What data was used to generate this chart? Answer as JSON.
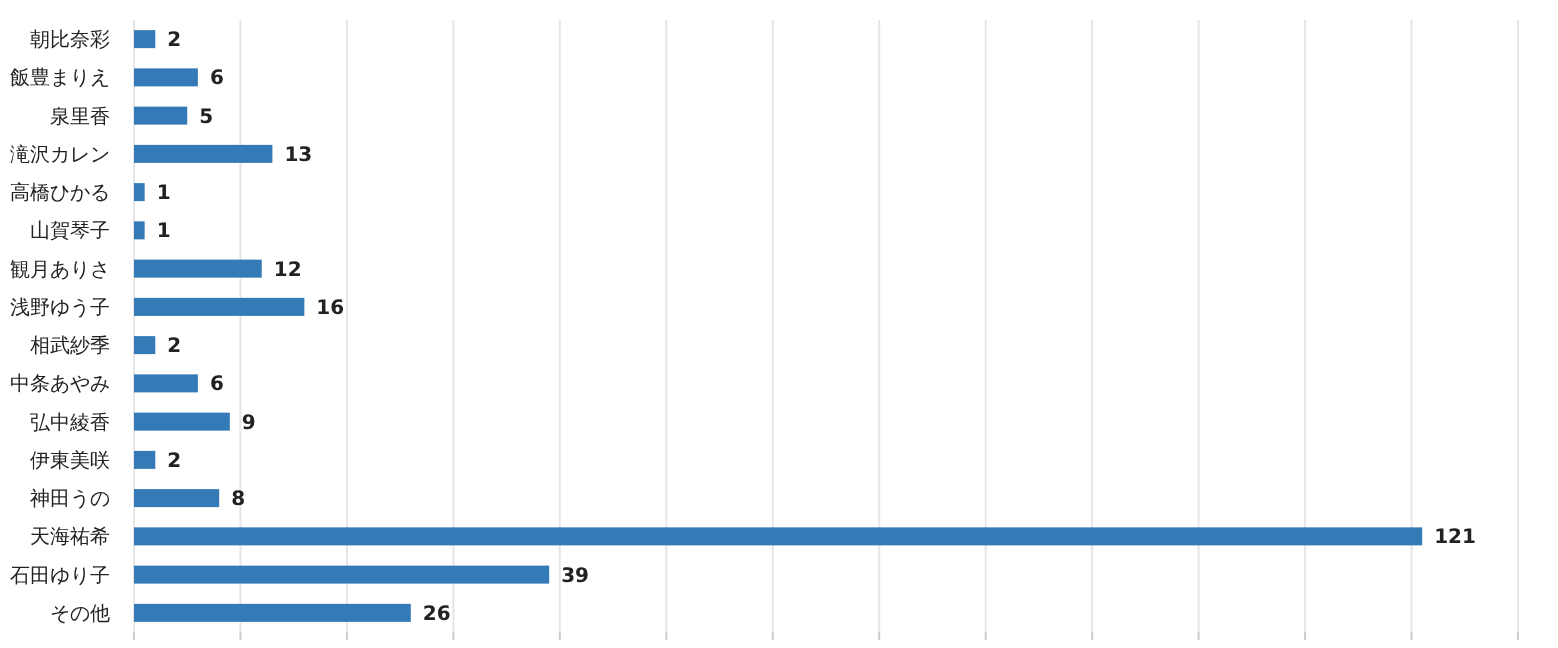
{
  "chart_data": {
    "type": "bar",
    "orientation": "horizontal",
    "categories": [
      "朝比奈彩",
      "飯豊まりえ",
      "泉里香",
      "滝沢カレン",
      "高橋ひかる",
      "山賀琴子",
      "観月ありさ",
      "浅野ゆう子",
      "相武紗季",
      "中条あやみ",
      "弘中綾香",
      "伊東美咲",
      "神田うの",
      "天海祐希",
      "石田ゆり子",
      "その他"
    ],
    "values": [
      2,
      6,
      5,
      13,
      1,
      1,
      12,
      16,
      2,
      6,
      9,
      2,
      8,
      121,
      39,
      26
    ],
    "color": "#337ab7",
    "xlim": [
      0,
      130
    ],
    "xticks": [
      {
        "value": 0,
        "label": null
      },
      {
        "value": 10,
        "label": null
      },
      {
        "value": 20,
        "label": null
      },
      {
        "value": 30,
        "label": null
      },
      {
        "value": 40,
        "label": null
      },
      {
        "value": 50,
        "label": null
      },
      {
        "value": 60,
        "label": null
      },
      {
        "value": 70,
        "label": null
      },
      {
        "value": 80,
        "label": null
      },
      {
        "value": 90,
        "label": null
      },
      {
        "value": 100,
        "label": null
      },
      {
        "value": 110,
        "label": null
      },
      {
        "value": 120,
        "label": null
      },
      {
        "value": 130,
        "label": null
      }
    ],
    "grid": "x",
    "tick_labels": "y",
    "data_labels": true
  }
}
